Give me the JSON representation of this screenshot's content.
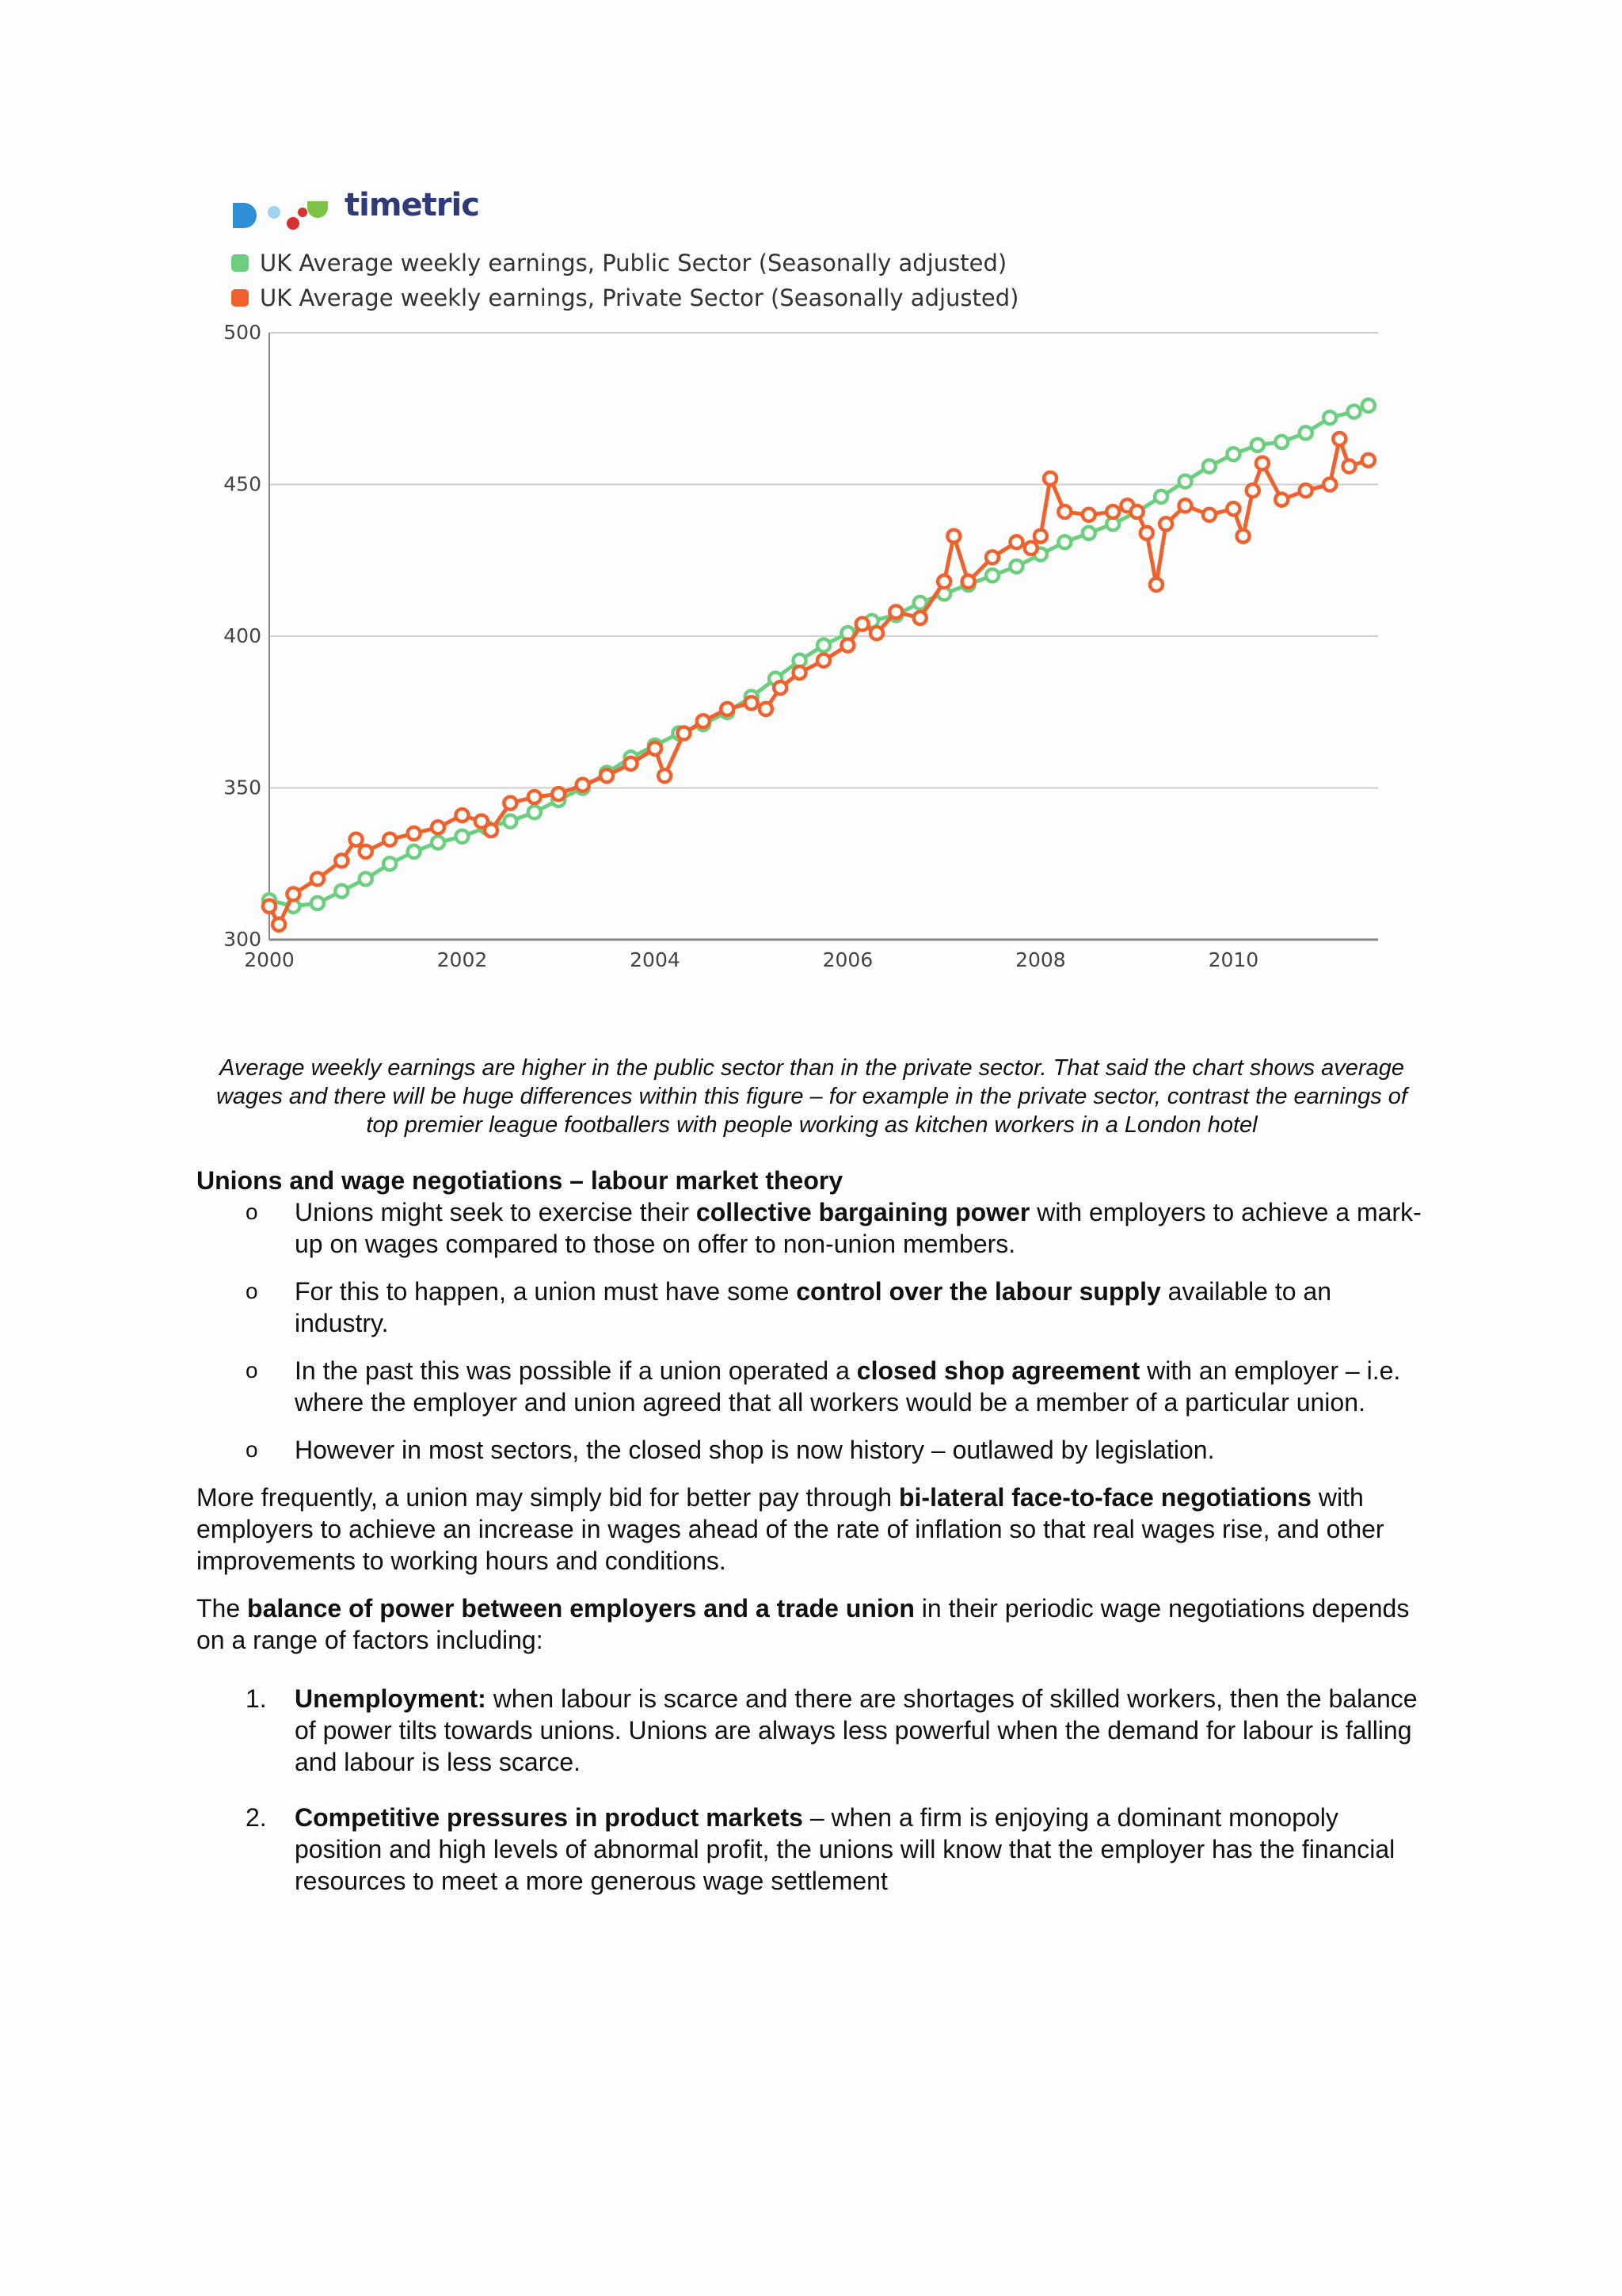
{
  "figure": {
    "logo_text": "timetric",
    "legend": [
      {
        "label": "UK Average weekly earnings, Public Sector (Seasonally adjusted)",
        "color": "#6ccf7f"
      },
      {
        "label": "UK Average weekly earnings, Private Sector (Seasonally adjusted)",
        "color": "#f0622d"
      }
    ]
  },
  "chart_data": {
    "type": "line",
    "title": "",
    "xlabel": "",
    "ylabel": "",
    "xlim": [
      2000,
      2011.5
    ],
    "ylim": [
      300,
      500
    ],
    "x_ticks": [
      "2000",
      "2002",
      "2004",
      "2006",
      "2008",
      "2010"
    ],
    "y_ticks": [
      "300",
      "350",
      "400",
      "450",
      "500"
    ],
    "grid": "horizontal",
    "legend_position": "top-left",
    "series": [
      {
        "name": "UK Average weekly earnings, Public Sector (Seasonally adjusted)",
        "color": "#6ccf7f",
        "points": [
          [
            2000.0,
            313
          ],
          [
            2000.25,
            311
          ],
          [
            2000.5,
            312
          ],
          [
            2000.75,
            316
          ],
          [
            2001.0,
            320
          ],
          [
            2001.25,
            325
          ],
          [
            2001.5,
            329
          ],
          [
            2001.75,
            332
          ],
          [
            2002.0,
            334
          ],
          [
            2002.25,
            337
          ],
          [
            2002.5,
            339
          ],
          [
            2002.75,
            342
          ],
          [
            2003.0,
            346
          ],
          [
            2003.25,
            350
          ],
          [
            2003.5,
            355
          ],
          [
            2003.75,
            360
          ],
          [
            2004.0,
            364
          ],
          [
            2004.25,
            368
          ],
          [
            2004.5,
            371
          ],
          [
            2004.75,
            375
          ],
          [
            2005.0,
            380
          ],
          [
            2005.25,
            386
          ],
          [
            2005.5,
            392
          ],
          [
            2005.75,
            397
          ],
          [
            2006.0,
            401
          ],
          [
            2006.25,
            405
          ],
          [
            2006.5,
            407
          ],
          [
            2006.75,
            411
          ],
          [
            2007.0,
            414
          ],
          [
            2007.25,
            417
          ],
          [
            2007.5,
            420
          ],
          [
            2007.75,
            423
          ],
          [
            2008.0,
            427
          ],
          [
            2008.25,
            431
          ],
          [
            2008.5,
            434
          ],
          [
            2008.75,
            437
          ],
          [
            2009.0,
            441
          ],
          [
            2009.25,
            446
          ],
          [
            2009.5,
            451
          ],
          [
            2009.75,
            456
          ],
          [
            2010.0,
            460
          ],
          [
            2010.25,
            463
          ],
          [
            2010.5,
            464
          ],
          [
            2010.75,
            467
          ],
          [
            2011.0,
            472
          ],
          [
            2011.25,
            474
          ],
          [
            2011.4,
            476
          ]
        ]
      },
      {
        "name": "UK Average weekly earnings, Private Sector (Seasonally adjusted)",
        "color": "#f0622d",
        "points": [
          [
            2000.0,
            311
          ],
          [
            2000.1,
            305
          ],
          [
            2000.25,
            315
          ],
          [
            2000.5,
            320
          ],
          [
            2000.75,
            326
          ],
          [
            2000.9,
            333
          ],
          [
            2001.0,
            329
          ],
          [
            2001.25,
            333
          ],
          [
            2001.5,
            335
          ],
          [
            2001.75,
            337
          ],
          [
            2002.0,
            341
          ],
          [
            2002.2,
            339
          ],
          [
            2002.3,
            336
          ],
          [
            2002.5,
            345
          ],
          [
            2002.75,
            347
          ],
          [
            2003.0,
            348
          ],
          [
            2003.25,
            351
          ],
          [
            2003.5,
            354
          ],
          [
            2003.75,
            358
          ],
          [
            2004.0,
            363
          ],
          [
            2004.1,
            354
          ],
          [
            2004.3,
            368
          ],
          [
            2004.5,
            372
          ],
          [
            2004.75,
            376
          ],
          [
            2005.0,
            378
          ],
          [
            2005.15,
            376
          ],
          [
            2005.3,
            383
          ],
          [
            2005.5,
            388
          ],
          [
            2005.75,
            392
          ],
          [
            2006.0,
            397
          ],
          [
            2006.15,
            404
          ],
          [
            2006.3,
            401
          ],
          [
            2006.5,
            408
          ],
          [
            2006.75,
            406
          ],
          [
            2007.0,
            418
          ],
          [
            2007.1,
            433
          ],
          [
            2007.25,
            418
          ],
          [
            2007.5,
            426
          ],
          [
            2007.75,
            431
          ],
          [
            2007.9,
            429
          ],
          [
            2008.0,
            433
          ],
          [
            2008.1,
            452
          ],
          [
            2008.25,
            441
          ],
          [
            2008.5,
            440
          ],
          [
            2008.75,
            441
          ],
          [
            2008.9,
            443
          ],
          [
            2009.0,
            441
          ],
          [
            2009.1,
            434
          ],
          [
            2009.2,
            417
          ],
          [
            2009.3,
            437
          ],
          [
            2009.5,
            443
          ],
          [
            2009.75,
            440
          ],
          [
            2010.0,
            442
          ],
          [
            2010.1,
            433
          ],
          [
            2010.2,
            448
          ],
          [
            2010.3,
            457
          ],
          [
            2010.5,
            445
          ],
          [
            2010.75,
            448
          ],
          [
            2011.0,
            450
          ],
          [
            2011.1,
            465
          ],
          [
            2011.2,
            456
          ],
          [
            2011.4,
            458
          ]
        ]
      }
    ]
  },
  "caption": "Average weekly earnings are higher in the public sector than in the private sector. That said the chart shows average wages and there will be huge differences within this figure – for example in the private sector, contrast the earnings of top premier league footballers with people working as kitchen workers in a London hotel",
  "section": {
    "heading": "Unions and wage negotiations – labour market theory",
    "bullets": [
      {
        "before": "Unions might seek to exercise their ",
        "bold": "collective bargaining power",
        "after": " with employers to achieve a mark-up on wages compared to those on offer to non-union members."
      },
      {
        "before": "For this to happen, a union must have some ",
        "bold": "control over the labour supply",
        "after": " available to an industry."
      },
      {
        "before": "In the past this was possible if a union operated a ",
        "bold": "closed shop agreement",
        "after": " with an employer – i.e. where the employer and union agreed that all workers would be a member of a particular union."
      },
      {
        "before": "However in most sectors, the closed shop is now history – outlawed by legislation.",
        "bold": "",
        "after": ""
      }
    ],
    "bullet_marker": "o",
    "para1": {
      "before": "More frequently, a union may simply bid for better pay through ",
      "bold": "bi-lateral face-to-face negotiations",
      "after": " with employers to achieve an increase in wages ahead of the rate of inflation so that real wages rise, and other improvements to working hours and conditions."
    },
    "para2": {
      "before": "The ",
      "bold": "balance of power between employers and a trade union",
      "after": " in their periodic wage negotiations depends on a range of factors including:"
    },
    "numbered": [
      {
        "num": "1.",
        "bold": "Unemployment:",
        "after": " when labour is scarce and there are shortages of skilled workers, then the balance of power tilts towards unions. Unions are always less powerful when the demand for labour is falling and labour is less scarce."
      },
      {
        "num": "2.",
        "bold": "Competitive pressures in product markets",
        "after": " – when a firm is enjoying a dominant monopoly position and high levels of abnormal profit, the unions will know that the employer has the financial resources to meet a more generous wage settlement"
      }
    ]
  }
}
